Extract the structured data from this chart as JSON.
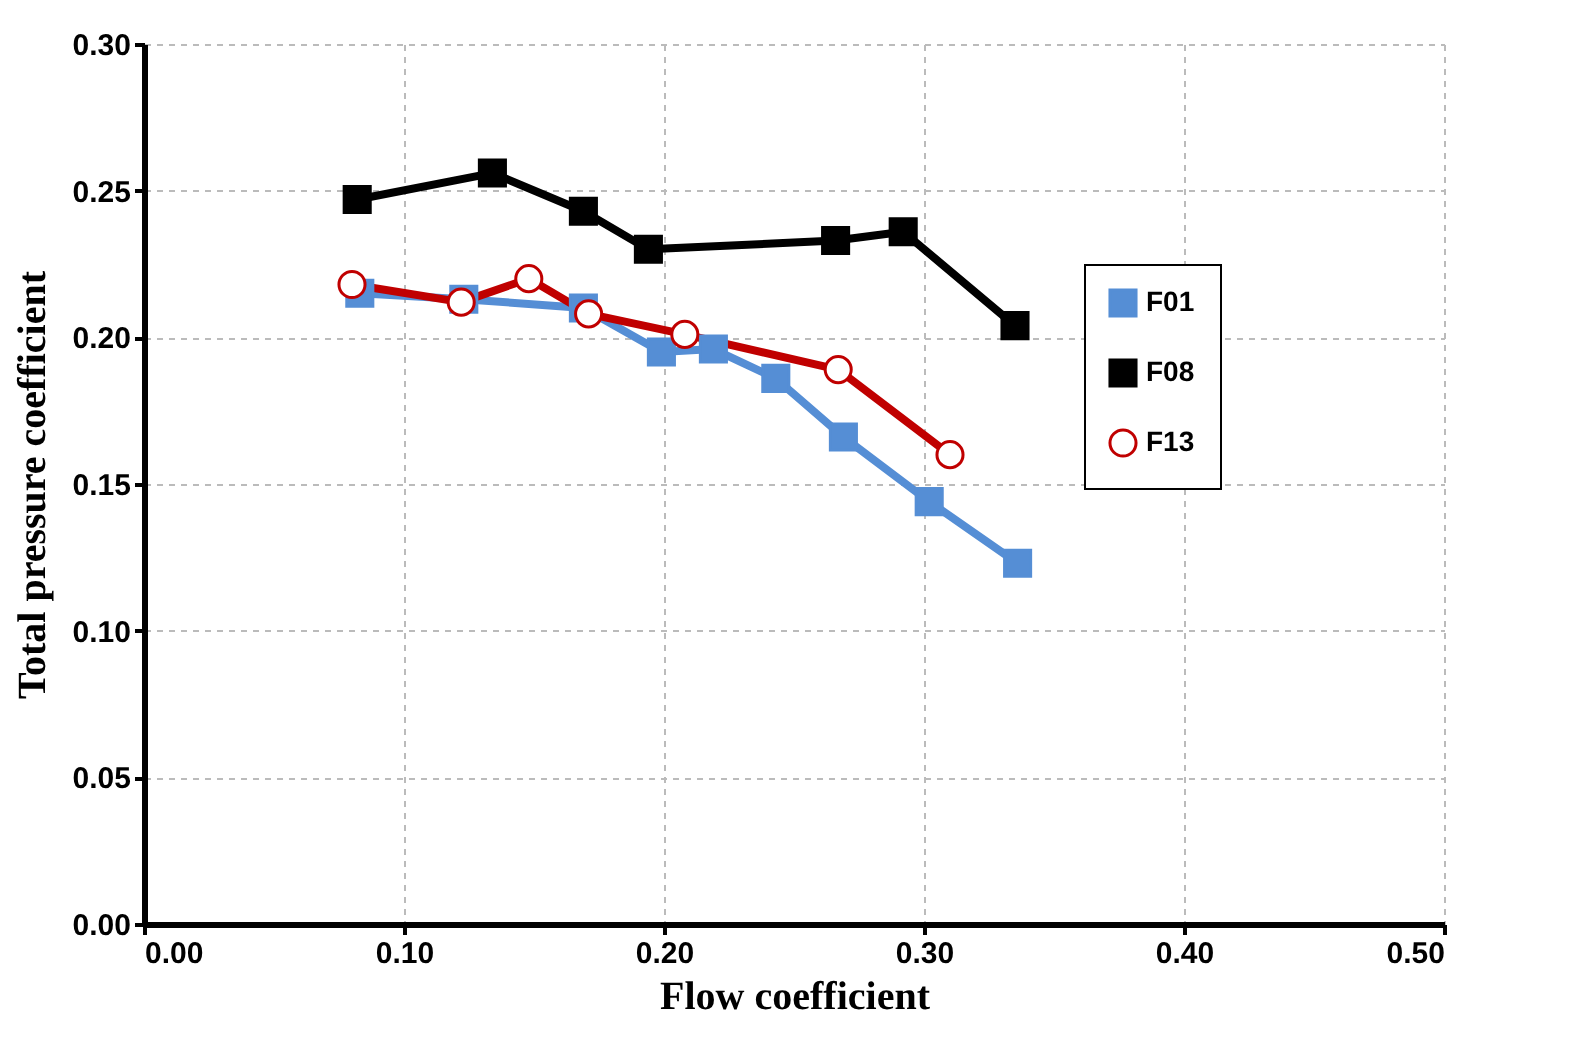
{
  "chart_data": {
    "type": "line",
    "xlabel": "Flow coefficient",
    "ylabel": "Total pressure coefficient",
    "xlim": [
      0,
      0.5
    ],
    "xticks": [
      {
        "value": 0,
        "label": "0.00"
      },
      {
        "value": 0.1,
        "label": "0.10"
      },
      {
        "value": 0.2,
        "label": "0.20"
      },
      {
        "value": 0.3,
        "label": "0.30"
      },
      {
        "value": 0.4,
        "label": "0.40"
      },
      {
        "value": 0.5,
        "label": "0.50"
      }
    ],
    "ylim": [
      0,
      0.3
    ],
    "yticks": [
      {
        "value": 0,
        "label": "0.00"
      },
      {
        "value": 0.05,
        "label": "0.05"
      },
      {
        "value": 0.1,
        "label": "0.10"
      },
      {
        "value": 0.15,
        "label": "0.15"
      },
      {
        "value": 0.2,
        "label": "0.20"
      },
      {
        "value": 0.25,
        "label": "0.25"
      },
      {
        "value": 0.3,
        "label": "0.30"
      }
    ],
    "grid": true,
    "legend": "right",
    "line_style": "solid",
    "series": [
      {
        "name": "F01",
        "color": "#558ed5",
        "marker": "square",
        "x": [
          0.083,
          0.123,
          0.169,
          0.199,
          0.219,
          0.243,
          0.269,
          0.302,
          0.336
        ],
        "values": [
          0.215,
          0.213,
          0.21,
          0.195,
          0.196,
          0.186,
          0.166,
          0.144,
          0.123
        ]
      },
      {
        "name": "F08",
        "color": "#000000",
        "marker": "square",
        "x": [
          0.082,
          0.134,
          0.169,
          0.194,
          0.266,
          0.292,
          0.335
        ],
        "values": [
          0.247,
          0.256,
          0.243,
          0.23,
          0.233,
          0.236,
          0.204
        ]
      },
      {
        "name": "F13",
        "color": "#c00000",
        "marker": "circle",
        "x": [
          0.08,
          0.122,
          0.148,
          0.171,
          0.208,
          0.267,
          0.31
        ],
        "values": [
          0.218,
          0.212,
          0.22,
          0.208,
          0.201,
          0.189,
          0.16
        ]
      }
    ]
  }
}
